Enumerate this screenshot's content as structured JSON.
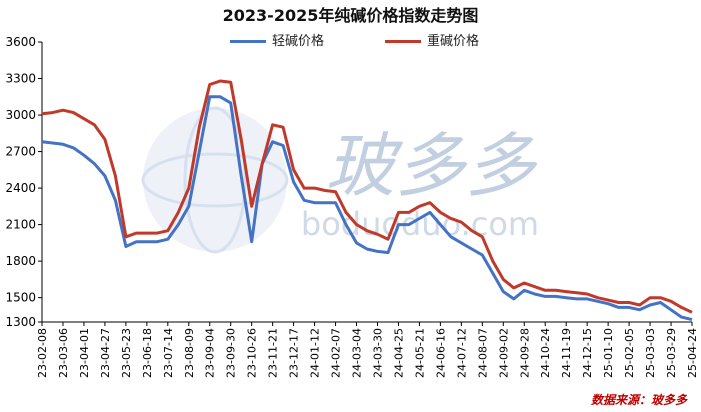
{
  "chart_data": {
    "type": "line",
    "title": "2023-2025年纯碱价格指数走势图",
    "source_text": "数据来源：玻多多",
    "watermark_text": "玻多多",
    "watermark_url_text": "boduoduo.com",
    "ylim": [
      1300,
      3600
    ],
    "yticks": [
      1300,
      1500,
      1800,
      2100,
      2400,
      2700,
      3000,
      3300,
      3600
    ],
    "grid": false,
    "legend_position": "top-center",
    "x_tick_labels": [
      "23-02-08",
      "23-03-06",
      "23-04-01",
      "23-04-27",
      "23-05-23",
      "23-06-18",
      "23-07-14",
      "23-08-09",
      "23-09-04",
      "23-09-30",
      "23-10-26",
      "23-11-21",
      "23-12-17",
      "24-01-12",
      "24-02-07",
      "24-03-04",
      "24-03-30",
      "24-04-25",
      "24-05-21",
      "24-06-16",
      "24-07-12",
      "24-08-07",
      "24-09-02",
      "24-09-28",
      "24-10-24",
      "24-11-19",
      "24-12-15",
      "25-01-10",
      "25-02-05",
      "25-03-03",
      "25-03-29",
      "25-04-24"
    ],
    "x": [
      "23-02-08",
      "23-02-21",
      "23-03-06",
      "23-03-19",
      "23-04-01",
      "23-04-14",
      "23-04-27",
      "23-05-10",
      "23-05-23",
      "23-06-05",
      "23-06-18",
      "23-07-01",
      "23-07-14",
      "23-07-27",
      "23-08-09",
      "23-08-22",
      "23-09-04",
      "23-09-17",
      "23-09-30",
      "23-10-13",
      "23-10-26",
      "23-11-08",
      "23-11-21",
      "23-12-04",
      "23-12-17",
      "23-12-30",
      "24-01-12",
      "24-01-25",
      "24-02-07",
      "24-02-20",
      "24-03-04",
      "24-03-17",
      "24-03-30",
      "24-04-12",
      "24-04-25",
      "24-05-08",
      "24-05-21",
      "24-06-03",
      "24-06-16",
      "24-06-29",
      "24-07-12",
      "24-07-25",
      "24-08-07",
      "24-08-20",
      "24-09-02",
      "24-09-15",
      "24-09-28",
      "24-10-11",
      "24-10-24",
      "24-11-06",
      "24-11-19",
      "24-12-02",
      "24-12-15",
      "24-12-28",
      "25-01-10",
      "25-01-23",
      "25-02-05",
      "25-02-18",
      "25-03-03",
      "25-03-16",
      "25-03-29",
      "25-04-11",
      "25-04-24"
    ],
    "series": [
      {
        "name": "轻碱价格",
        "color": "#4472c4",
        "values": [
          2780,
          2770,
          2760,
          2730,
          2670,
          2600,
          2500,
          2300,
          1920,
          1960,
          1960,
          1960,
          1980,
          2100,
          2250,
          2700,
          3150,
          3150,
          3100,
          2500,
          1960,
          2600,
          2780,
          2750,
          2450,
          2300,
          2280,
          2280,
          2280,
          2100,
          1950,
          1900,
          1880,
          1870,
          2100,
          2100,
          2150,
          2200,
          2100,
          2000,
          1950,
          1900,
          1850,
          1700,
          1550,
          1490,
          1560,
          1530,
          1510,
          1510,
          1500,
          1490,
          1490,
          1470,
          1450,
          1420,
          1420,
          1400,
          1440,
          1460,
          1400,
          1340,
          1320
        ]
      },
      {
        "name": "重碱价格",
        "color": "#c0392b",
        "values": [
          3010,
          3020,
          3040,
          3020,
          2970,
          2920,
          2800,
          2500,
          2000,
          2030,
          2030,
          2030,
          2050,
          2200,
          2400,
          2900,
          3250,
          3280,
          3270,
          2800,
          2250,
          2600,
          2920,
          2900,
          2550,
          2400,
          2400,
          2380,
          2370,
          2200,
          2100,
          2050,
          2020,
          1980,
          2200,
          2200,
          2250,
          2280,
          2200,
          2150,
          2120,
          2050,
          2000,
          1800,
          1650,
          1580,
          1620,
          1590,
          1560,
          1560,
          1550,
          1540,
          1530,
          1500,
          1480,
          1460,
          1460,
          1440,
          1500,
          1500,
          1470,
          1420,
          1380
        ]
      }
    ]
  }
}
